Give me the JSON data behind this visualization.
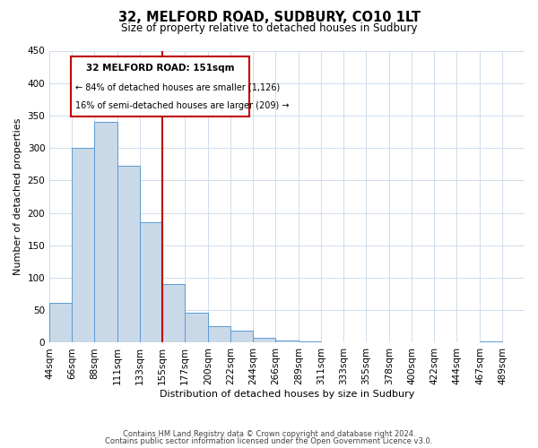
{
  "title": "32, MELFORD ROAD, SUDBURY, CO10 1LT",
  "subtitle": "Size of property relative to detached houses in Sudbury",
  "xlabel": "Distribution of detached houses by size in Sudbury",
  "ylabel": "Number of detached properties",
  "bar_left_edges": [
    44,
    66,
    88,
    111,
    133,
    155,
    177,
    200,
    222,
    244,
    266,
    289,
    311,
    333,
    355,
    378,
    400,
    422,
    444,
    467
  ],
  "bar_widths": [
    22,
    22,
    23,
    22,
    22,
    22,
    23,
    22,
    22,
    22,
    23,
    22,
    22,
    22,
    23,
    22,
    22,
    22,
    23,
    22
  ],
  "bar_heights": [
    62,
    300,
    340,
    272,
    185,
    90,
    46,
    25,
    18,
    8,
    4,
    2,
    1,
    0,
    1,
    0,
    0,
    0,
    0,
    2
  ],
  "bar_color": "#c9d9e8",
  "bar_edge_color": "#5b9bd5",
  "x_tick_labels": [
    "44sqm",
    "66sqm",
    "88sqm",
    "111sqm",
    "133sqm",
    "155sqm",
    "177sqm",
    "200sqm",
    "222sqm",
    "244sqm",
    "266sqm",
    "289sqm",
    "311sqm",
    "333sqm",
    "355sqm",
    "378sqm",
    "400sqm",
    "422sqm",
    "444sqm",
    "467sqm",
    "489sqm"
  ],
  "x_tick_positions": [
    44,
    66,
    88,
    111,
    133,
    155,
    177,
    200,
    222,
    244,
    266,
    289,
    311,
    333,
    355,
    378,
    400,
    422,
    444,
    467,
    489
  ],
  "ylim": [
    0,
    450
  ],
  "xlim": [
    44,
    511
  ],
  "property_line_x": 155,
  "property_line_color": "#c00000",
  "annotation_title": "32 MELFORD ROAD: 151sqm",
  "annotation_line1": "← 84% of detached houses are smaller (1,126)",
  "annotation_line2": "16% of semi-detached houses are larger (209) →",
  "annotation_box_color": "#c00000",
  "annotation_bg_color": "#ffffff",
  "footer_line1": "Contains HM Land Registry data © Crown copyright and database right 2024.",
  "footer_line2": "Contains public sector information licensed under the Open Government Licence v3.0.",
  "background_color": "#ffffff",
  "grid_color": "#c8d8e8"
}
